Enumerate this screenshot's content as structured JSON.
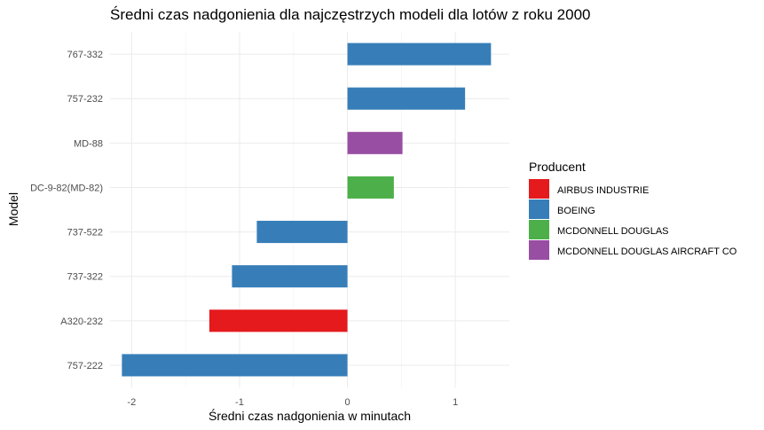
{
  "chart_data": {
    "type": "bar",
    "orientation": "horizontal",
    "title": "Średni czas nadgonienia dla najczęstrzych modeli dla lotów z roku 2000",
    "xlabel": "Średni czas nadgonienia w minutach",
    "ylabel": "Model",
    "xlim": [
      -2.2,
      1.5
    ],
    "xticks": [
      -2,
      -1,
      0,
      1
    ],
    "grid": true,
    "legend_title": "Producent",
    "legend_position": "right",
    "legend": [
      {
        "name": "AIRBUS INDUSTRIE",
        "color": "#e41a1c"
      },
      {
        "name": "BOEING",
        "color": "#377eb8"
      },
      {
        "name": "MCDONNELL DOUGLAS",
        "color": "#4daf4a"
      },
      {
        "name": "MCDONNELL DOUGLAS AIRCRAFT CO",
        "color": "#984ea3"
      }
    ],
    "bars": [
      {
        "category": "767-332",
        "value": 1.33,
        "producer": "BOEING"
      },
      {
        "category": "757-232",
        "value": 1.09,
        "producer": "BOEING"
      },
      {
        "category": "MD-88",
        "value": 0.51,
        "producer": "MCDONNELL DOUGLAS AIRCRAFT CO"
      },
      {
        "category": "DC-9-82(MD-82)",
        "value": 0.43,
        "producer": "MCDONNELL DOUGLAS"
      },
      {
        "category": "737-522",
        "value": -0.84,
        "producer": "BOEING"
      },
      {
        "category": "737-322",
        "value": -1.07,
        "producer": "BOEING"
      },
      {
        "category": "A320-232",
        "value": -1.28,
        "producer": "AIRBUS INDUSTRIE"
      },
      {
        "category": "757-222",
        "value": -2.09,
        "producer": "BOEING"
      }
    ]
  }
}
